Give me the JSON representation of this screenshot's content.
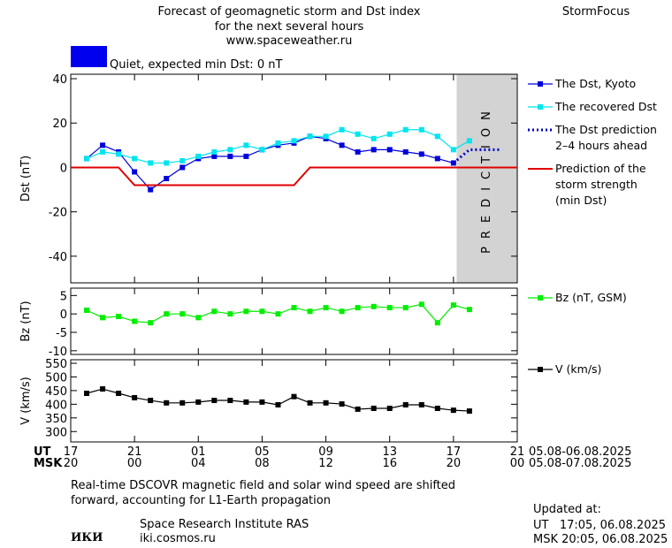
{
  "header": {
    "title": [
      "Forecast of geomagnetic storm and Dst index",
      "for the next several hours",
      "www.spaceweather.ru"
    ],
    "brand": "StormFocus",
    "quiet_label": "Quiet, expected min Dst: 0 nT",
    "quiet_color": "#0000ee"
  },
  "x_axis": {
    "ut_label": "UT",
    "msk_label": "MSK",
    "ut_range": "05.08-06.08.2025",
    "msk_range": "05.08-07.08.2025"
  },
  "chart_data": [
    {
      "type": "line",
      "y_label": "Dst (nT)",
      "xlim": [
        0,
        28
      ],
      "ylim": [
        -52,
        42
      ],
      "yticks": [
        -40,
        -20,
        0,
        20,
        40
      ],
      "prediction_region": {
        "from": 24.2,
        "label": "PREDICTION"
      },
      "series": [
        {
          "name": "The Dst, Kyoto",
          "color": "#0000dd",
          "marker": "square",
          "x": [
            1,
            2,
            3,
            4,
            5,
            6,
            7,
            8,
            9,
            10,
            11,
            12,
            13,
            14,
            15,
            16,
            17,
            18,
            19,
            20,
            21,
            22,
            23,
            24
          ],
          "values": [
            4,
            10,
            7,
            -2,
            -10,
            -5,
            0,
            4,
            5,
            5,
            5,
            8,
            10,
            11,
            14,
            13,
            10,
            7,
            8,
            8,
            7,
            6,
            4,
            2
          ]
        },
        {
          "name": "The recovered Dst",
          "color": "#00e5ee",
          "marker": "square",
          "x": [
            1,
            2,
            3,
            4,
            5,
            6,
            7,
            8,
            9,
            10,
            11,
            12,
            13,
            14,
            15,
            16,
            17,
            18,
            19,
            20,
            21,
            22,
            23,
            24,
            25
          ],
          "values": [
            4,
            7,
            6,
            4,
            2,
            2,
            3,
            5,
            7,
            8,
            10,
            8,
            11,
            12,
            14,
            14,
            17,
            15,
            13,
            15,
            17,
            17,
            14,
            8,
            12
          ]
        },
        {
          "name": "The Dst prediction\n2–4 hours ahead",
          "color": "#0000cc",
          "dash": "dotted",
          "x": [
            24,
            25,
            26,
            27
          ],
          "values": [
            2,
            8,
            8,
            8
          ]
        },
        {
          "name": "Prediction of the\nstorm strength\n(min Dst)",
          "color": "#e00000",
          "x": [
            0,
            3,
            4,
            14,
            15,
            28
          ],
          "values": [
            0,
            0,
            -8,
            -8,
            0,
            0
          ]
        }
      ]
    },
    {
      "type": "line",
      "y_label": "Bz (nT)",
      "xlim": [
        0,
        28
      ],
      "ylim": [
        -11,
        7
      ],
      "yticks": [
        -10,
        -5,
        0,
        5
      ],
      "series": [
        {
          "name": "Bz (nT, GSM)",
          "color": "#00ee00",
          "marker": "square",
          "x": [
            1,
            2,
            3,
            4,
            5,
            6,
            7,
            8,
            9,
            10,
            11,
            12,
            13,
            14,
            15,
            16,
            17,
            18,
            19,
            20,
            21,
            22,
            23,
            24,
            25
          ],
          "values": [
            1,
            -1,
            -0.7,
            -2,
            -2.4,
            0,
            0,
            -1,
            0.7,
            0,
            0.7,
            0.7,
            0,
            1.7,
            0.7,
            1.7,
            0.7,
            1.7,
            2,
            1.7,
            1.7,
            2.6,
            -2.4,
            2.4,
            1.2
          ]
        }
      ]
    },
    {
      "type": "line",
      "y_label": "V (km/s)",
      "xlim": [
        0,
        28
      ],
      "ylim": [
        262,
        563
      ],
      "yticks": [
        300,
        350,
        400,
        450,
        500,
        550
      ],
      "xticks": [
        {
          "value": 0,
          "label": "17"
        },
        {
          "value": 4,
          "label": "21"
        },
        {
          "value": 8,
          "label": "01"
        },
        {
          "value": 12,
          "label": "05"
        },
        {
          "value": 16,
          "label": "09"
        },
        {
          "value": 20,
          "label": "13"
        },
        {
          "value": 24,
          "label": "17"
        },
        {
          "value": 28,
          "label": "21"
        }
      ],
      "msk_ticklabels": [
        "20",
        "00",
        "04",
        "08",
        "12",
        "16",
        "20",
        "00"
      ],
      "series": [
        {
          "name": "V (km/s)",
          "color": "#000000",
          "marker": "square",
          "x": [
            1,
            2,
            3,
            4,
            5,
            6,
            7,
            8,
            9,
            10,
            11,
            12,
            13,
            14,
            15,
            16,
            17,
            18,
            19,
            20,
            21,
            22,
            23,
            24,
            25
          ],
          "values": [
            440,
            456,
            440,
            424,
            414,
            405,
            405,
            408,
            414,
            414,
            408,
            408,
            398,
            428,
            405,
            405,
            401,
            382,
            385,
            385,
            398,
            398,
            385,
            378,
            375
          ]
        }
      ]
    }
  ],
  "footer": {
    "note": [
      "Real-time DSCOVR magnetic field and solar wind speed are shifted",
      "forward, accounting for L1-Earth propagation"
    ],
    "logo": "ИКИ",
    "institute": "Space Research Institute RAS",
    "site": "iki.cosmos.ru",
    "updated": [
      "Updated at:",
      "UT   17:05, 06.08.2025",
      "MSK 20:05, 06.08.2025"
    ]
  }
}
